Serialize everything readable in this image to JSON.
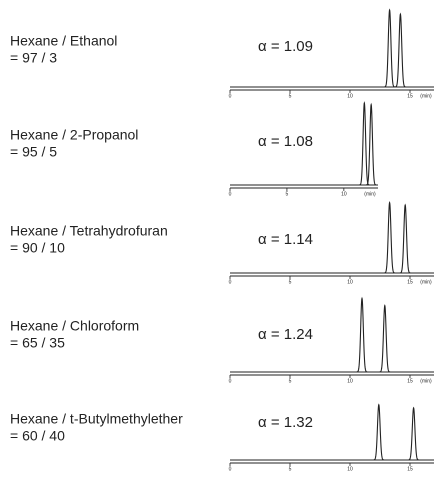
{
  "chart_data": [
    {
      "type": "line",
      "title": "Hexane / Ethanol",
      "subtitle": "= 97 / 3",
      "annotation": "α = 1.09",
      "x": [
        13.3,
        14.2
      ],
      "values": [
        95,
        90
      ],
      "xlim": [
        0,
        17
      ],
      "ylim": [
        0,
        100
      ],
      "xticks": [
        0,
        5,
        10,
        15
      ],
      "xlabel": "(min)",
      "color": "#222222"
    },
    {
      "type": "line",
      "title": "Hexane / 2-Propanol",
      "subtitle": "= 95 / 5",
      "annotation": "α = 1.08",
      "x": [
        11.8,
        12.4
      ],
      "values": [
        100,
        98
      ],
      "xlim": [
        0,
        13
      ],
      "ylim": [
        0,
        100
      ],
      "xticks": [
        0,
        5,
        10
      ],
      "xlabel": "(min)",
      "color": "#222222"
    },
    {
      "type": "line",
      "title": "Hexane / Tetrahydrofuran",
      "subtitle": "= 90 / 10",
      "annotation": "α = 1.14",
      "x": [
        13.3,
        14.6
      ],
      "values": [
        88,
        85
      ],
      "xlim": [
        0,
        17
      ],
      "ylim": [
        0,
        100
      ],
      "xticks": [
        0,
        5,
        10,
        15
      ],
      "xlabel": "(min)",
      "color": "#222222"
    },
    {
      "type": "line",
      "title": "Hexane / Chloroform",
      "subtitle": "= 65 / 35",
      "annotation": "α = 1.24",
      "x": [
        11.0,
        12.9
      ],
      "values": [
        92,
        83
      ],
      "xlim": [
        0,
        17
      ],
      "ylim": [
        0,
        100
      ],
      "xticks": [
        0,
        5,
        10,
        15
      ],
      "xlabel": "(min)",
      "color": "#222222"
    },
    {
      "type": "line",
      "title": "Hexane / t-Butylmethylether",
      "subtitle": "= 60 / 40",
      "annotation": "α = 1.32",
      "x": [
        12.4,
        15.3
      ],
      "values": [
        70,
        66
      ],
      "xlim": [
        0,
        17
      ],
      "ylim": [
        0,
        100
      ],
      "xticks": [
        0,
        5,
        10,
        15
      ],
      "color": "#222222"
    }
  ]
}
